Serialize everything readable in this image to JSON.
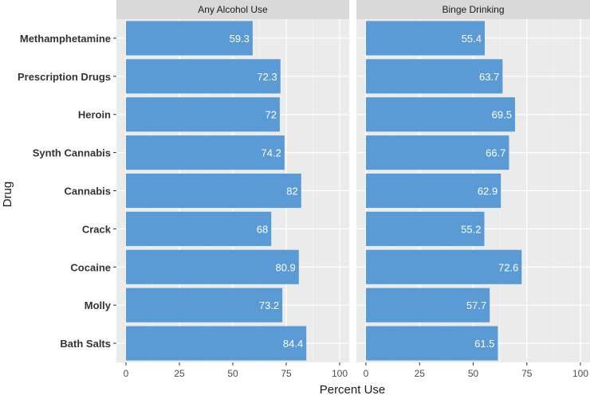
{
  "chart_data": {
    "type": "bar",
    "orientation": "horizontal",
    "categories": [
      "Methamphetamine",
      "Prescription Drugs",
      "Heroin",
      "Synth Cannabis",
      "Cannabis",
      "Crack",
      "Cocaine",
      "Molly",
      "Bath Salts"
    ],
    "series": [
      {
        "name": "Any Alcohol Use",
        "values": [
          59.3,
          72.3,
          72,
          74.2,
          82,
          68,
          80.9,
          73.2,
          84.4
        ]
      },
      {
        "name": "Binge Drinking",
        "values": [
          55.4,
          63.7,
          69.5,
          66.7,
          62.9,
          55.2,
          72.6,
          57.7,
          61.5
        ]
      }
    ],
    "value_labels": [
      [
        "59.3",
        "72.3",
        "72",
        "74.2",
        "82",
        "68",
        "80.9",
        "73.2",
        "84.4"
      ],
      [
        "55.4",
        "63.7",
        "69.5",
        "66.7",
        "62.9",
        "55.2",
        "72.6",
        "57.7",
        "61.5"
      ]
    ],
    "xlabel": "Percent Use",
    "ylabel": "Drug",
    "xlim": [
      0,
      100
    ],
    "xticks": [
      0,
      25,
      50,
      75,
      100
    ],
    "xtick_labels": [
      "0",
      "25",
      "50",
      "75",
      "100"
    ],
    "facets": [
      "Any Alcohol Use",
      "Binge Drinking"
    ],
    "grid": true,
    "colors": {
      "bar": "#5b9bd5",
      "panel": "#ebebeb",
      "strip": "#d9d9d9",
      "grid_major": "#ffffff",
      "grid_minor": "#f5f5f5"
    }
  }
}
